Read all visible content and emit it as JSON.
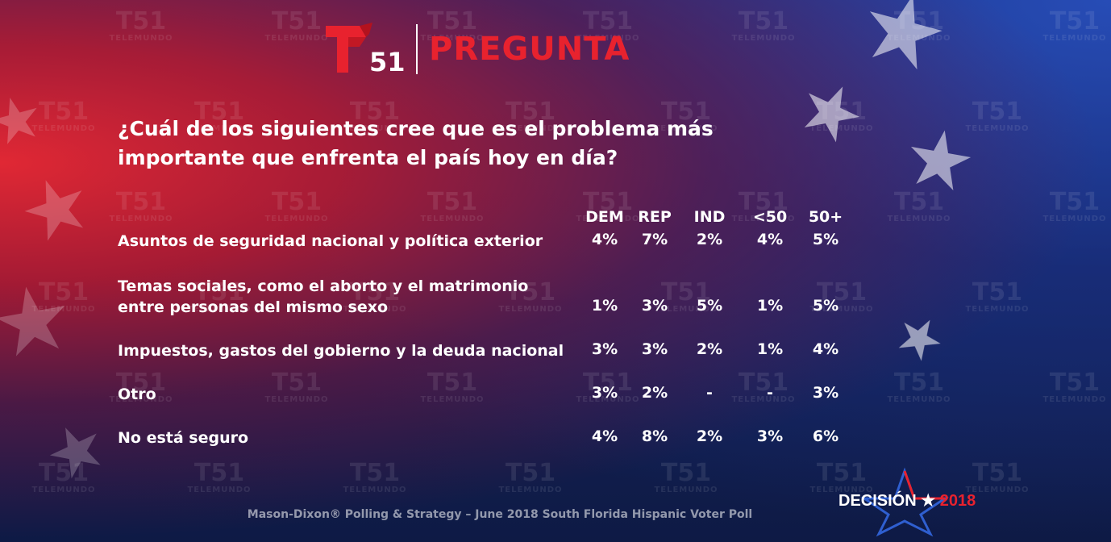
{
  "header": {
    "logo_number": "51",
    "title": "PREGUNTA",
    "watermark_word": "TELEMUNDO",
    "watermark_number": "51"
  },
  "question": "¿Cuál de los siguientes cree que es el problema más importante que enfrenta el país hoy en día?",
  "table": {
    "columns": [
      "DEM",
      "REP",
      "IND",
      "<50",
      "50+"
    ],
    "rows": [
      {
        "label_lines": [
          "Asuntos de seguridad nacional y política exterior"
        ],
        "values": [
          "4%",
          "7%",
          "2%",
          "4%",
          "5%"
        ]
      },
      {
        "label_lines": [
          "Temas sociales, como el aborto y el matrimonio",
          "entre personas del mismo sexo"
        ],
        "values": [
          "1%",
          "3%",
          "5%",
          "1%",
          "5%"
        ]
      },
      {
        "label_lines": [
          "Impuestos, gastos del gobierno y la deuda nacional"
        ],
        "values": [
          "3%",
          "3%",
          "2%",
          "1%",
          "4%"
        ]
      },
      {
        "label_lines": [
          "Otro"
        ],
        "values": [
          "3%",
          "2%",
          "-",
          "-",
          "3%"
        ]
      },
      {
        "label_lines": [
          "No está seguro"
        ],
        "values": [
          "4%",
          "8%",
          "2%",
          "3%",
          "6%"
        ]
      }
    ]
  },
  "footer": "Mason-Dixon® Polling & Strategy – June 2018 South Florida Hispanic Voter Poll",
  "badge": {
    "word": "DECISIÓN",
    "year": "2018"
  },
  "colors": {
    "accent_red": "#e8222e",
    "background_blue": "#1c2a6e",
    "background_red": "#eb2832"
  }
}
